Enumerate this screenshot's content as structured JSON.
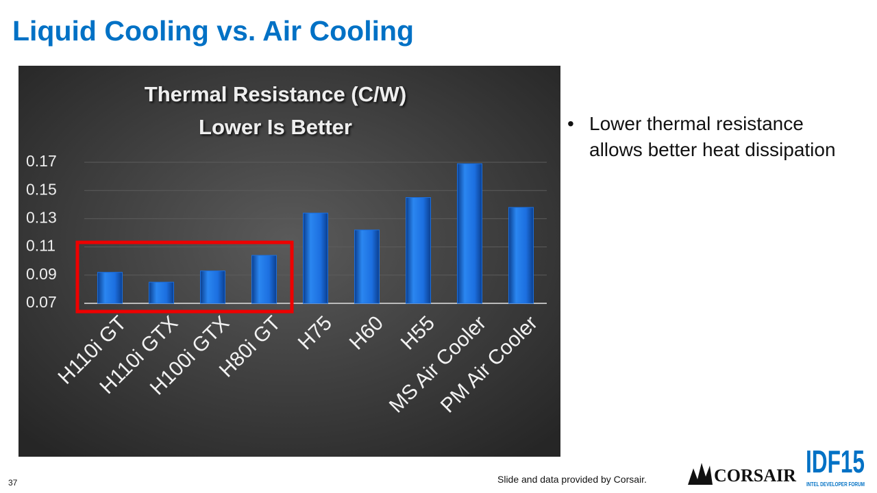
{
  "slide_title": "Liquid Cooling vs. Air Cooling",
  "bullets": [
    "Lower thermal resistance allows better heat dissipation"
  ],
  "footer": "Slide and data provided by Corsair.",
  "page_number": "37",
  "logos": {
    "corsair": "CORSAIR",
    "idf": "IDF15",
    "idf_caption": "INTEL DEVELOPER FORUM"
  },
  "chart_data": {
    "type": "bar",
    "title": "Thermal Resistance (C/W)",
    "subtitle": "Lower Is Better",
    "categories": [
      "H110i GT",
      "H110i GTX",
      "H100i GTX",
      "H80i GT",
      "H75",
      "H60",
      "H55",
      "MS Air Cooler",
      "PM Air Cooler"
    ],
    "values": [
      0.092,
      0.085,
      0.093,
      0.104,
      0.134,
      0.122,
      0.145,
      0.169,
      0.138
    ],
    "color": "#1a6fe0",
    "ylim": [
      0.07,
      0.17
    ],
    "yticks": [
      0.07,
      0.09,
      0.11,
      0.13,
      0.15,
      0.17
    ],
    "grid": true
  }
}
